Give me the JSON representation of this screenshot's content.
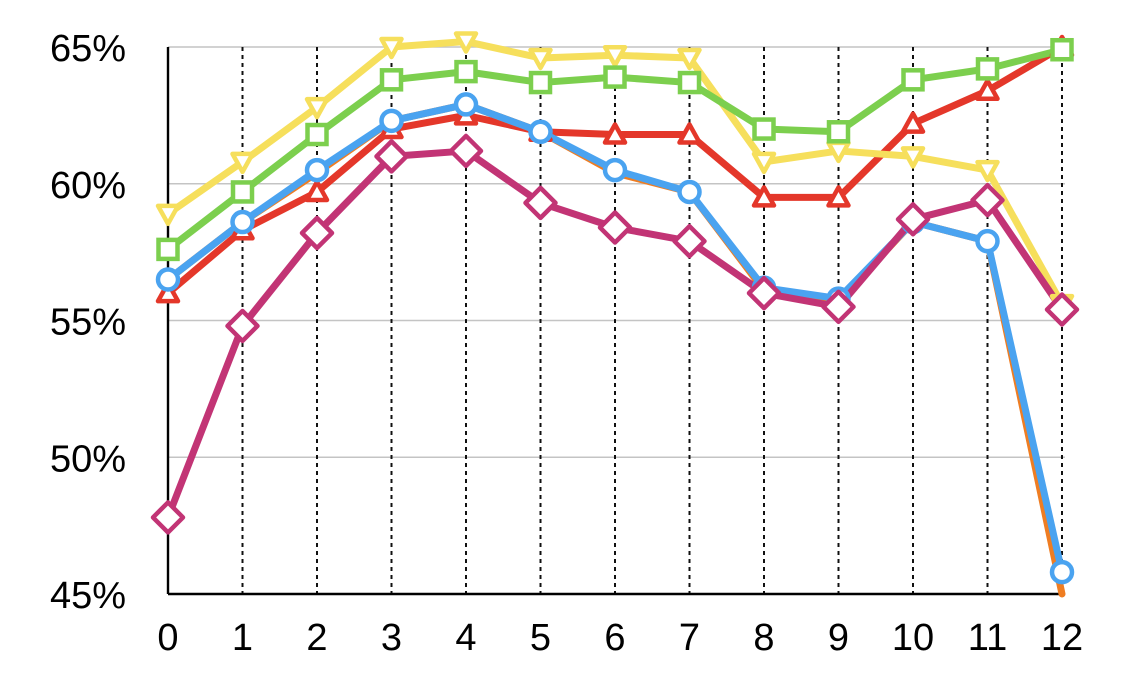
{
  "chart_data": {
    "type": "line",
    "x": [
      0,
      1,
      2,
      3,
      4,
      5,
      6,
      7,
      8,
      9,
      10,
      11,
      12
    ],
    "x_tick_labels": [
      "0",
      "1",
      "2",
      "3",
      "4",
      "5",
      "6",
      "7",
      "8",
      "9",
      "10",
      "11",
      "12"
    ],
    "y_tick_values": [
      45,
      50,
      55,
      60,
      65
    ],
    "y_tick_labels": [
      "45%",
      "50%",
      "55%",
      "60%",
      "65%"
    ],
    "ylim": [
      45,
      65
    ],
    "xlim": [
      0,
      12.3
    ],
    "grid": {
      "horizontal": true,
      "vertical_dotted": true
    },
    "legend": "none",
    "series": [
      {
        "marker": "triangle",
        "color": "#e4372a",
        "values": [
          56.0,
          58.3,
          59.7,
          62.0,
          62.5,
          61.9,
          61.8,
          61.8,
          59.5,
          59.5,
          62.2,
          63.4,
          65.0
        ]
      },
      {
        "marker": "triangle-down",
        "color": "#f6df5c",
        "values": [
          58.9,
          60.8,
          62.8,
          65.0,
          65.2,
          64.6,
          64.7,
          64.6,
          60.8,
          61.2,
          61.0,
          60.5,
          55.6
        ]
      },
      {
        "marker": "square",
        "color": "#7ccf4e",
        "values": [
          57.6,
          59.7,
          61.8,
          63.8,
          64.1,
          63.7,
          63.9,
          63.7,
          62.0,
          61.9,
          63.8,
          64.2,
          64.9
        ]
      },
      {
        "marker": "circle",
        "color": "#ef7d22",
        "values": [
          56.5,
          58.6,
          60.4,
          62.3,
          62.9,
          61.9,
          60.4,
          59.7,
          56.1,
          55.7,
          58.6,
          57.9,
          45.0
        ]
      },
      {
        "marker": "circle",
        "color": "#4aa3f0",
        "values": [
          56.5,
          58.6,
          60.5,
          62.3,
          62.9,
          61.9,
          60.5,
          59.7,
          56.2,
          55.8,
          58.6,
          57.9,
          45.8
        ]
      },
      {
        "marker": "diamond",
        "color": "#c23475",
        "values": [
          47.8,
          54.8,
          58.2,
          61.0,
          61.2,
          59.3,
          58.4,
          57.9,
          56.0,
          55.5,
          58.7,
          59.4,
          55.4
        ]
      }
    ]
  }
}
